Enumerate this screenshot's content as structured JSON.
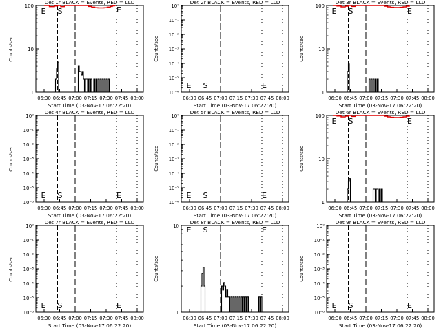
{
  "figure": {
    "background": "#ffffff",
    "event_color": "#000000",
    "lld_color": "#e00000"
  },
  "chart_data": [
    {
      "type": "line",
      "title": "Det 1r BLACK = Events, RED = LLD",
      "xlabel": "Start Time (03-Nov-17 06:22:20)",
      "ylabel": "Counts/sec",
      "x_ticks": [
        "06:30",
        "06:45",
        "07:00",
        "07:15",
        "07:30",
        "07:45",
        "08:00"
      ],
      "y_scale": "log",
      "y_ticks": [
        "1",
        "10",
        "100"
      ],
      "ylim": [
        1,
        100
      ],
      "markers": [
        {
          "label": "E",
          "time": "06:27"
        },
        {
          "label": "S",
          "time": "06:43"
        },
        {
          "label": "E",
          "time": "07:40"
        }
      ],
      "series": [
        {
          "name": "Events",
          "color": "#000000",
          "x": [
            "06:40",
            "06:41",
            "06:42",
            "06:43",
            "06:44",
            "06:45",
            "06:46",
            "06:47",
            "06:48",
            "06:49",
            "06:50",
            "06:51",
            "06:52",
            "06:53",
            "06:54",
            "06:55",
            "06:56",
            "06:57",
            "06:58",
            "06:59",
            "07:00",
            "07:01",
            "07:02",
            "07:03",
            "07:04",
            "07:05",
            "07:06",
            "07:07",
            "07:08",
            "07:09",
            "07:10",
            "07:11",
            "07:12",
            "07:13",
            "07:14",
            "07:15",
            "07:16",
            "07:17",
            "07:18",
            "07:19",
            "07:20",
            "07:21",
            "07:22",
            "07:23",
            "07:24",
            "07:25",
            "07:26",
            "07:27",
            "07:28",
            "07:29",
            "07:30",
            "07:31",
            "07:32",
            "07:33"
          ],
          "values": [
            1,
            2,
            3.5,
            5,
            0,
            0,
            0,
            0,
            0,
            0,
            0,
            0,
            0,
            0,
            0,
            0,
            0,
            0,
            0,
            0,
            0,
            0,
            0,
            4,
            3,
            3,
            2.5,
            3,
            2,
            1,
            2,
            2,
            1,
            2,
            1,
            2,
            1,
            1,
            2,
            1,
            2,
            1,
            2,
            1,
            2,
            1,
            2,
            1,
            2,
            1,
            2,
            1,
            2,
            1
          ]
        },
        {
          "name": "LLD",
          "color": "#e00000",
          "x": [
            "06:30",
            "06:35",
            "06:40",
            "06:43",
            "06:46",
            "06:50",
            "07:10",
            "07:13",
            "07:16",
            "07:19",
            "07:22",
            "07:25",
            "07:28",
            "07:31",
            "07:34",
            "07:36",
            "07:38",
            "07:40"
          ],
          "values": [
            100,
            94,
            97,
            100,
            94,
            100,
            100,
            95,
            92,
            89,
            88,
            88,
            89,
            92,
            95,
            98,
            100,
            100
          ]
        }
      ]
    },
    {
      "type": "line",
      "title": "Det 2r BLACK = Events, RED = LLD",
      "xlabel": "Start Time (03-Nov-17 06:22:20)",
      "ylabel": "Counts/sec",
      "x_ticks": [
        "06:30",
        "06:45",
        "07:00",
        "07:15",
        "07:30",
        "07:45",
        "08:00"
      ],
      "y_scale": "log",
      "y_ticks": [
        "10⁰",
        "10⁻¹",
        "10⁻²",
        "10⁻³",
        "10⁻⁴",
        "10⁻⁵",
        "10⁻⁶"
      ],
      "ylim": [
        1e-06,
        1
      ],
      "markers": [
        {
          "label": "E",
          "time": "06:27"
        },
        {
          "label": "S",
          "time": "06:43"
        },
        {
          "label": "E",
          "time": "07:40"
        }
      ],
      "series": []
    },
    {
      "type": "line",
      "title": "Det 3r BLACK = Events, RED = LLD",
      "xlabel": "Start Time (03-Nov-17 06:22:20)",
      "ylabel": "Counts/sec",
      "x_ticks": [
        "06:30",
        "06:45",
        "07:00",
        "07:15",
        "07:30",
        "07:45",
        "08:00"
      ],
      "y_scale": "log",
      "y_ticks": [
        "1",
        "10",
        "100"
      ],
      "ylim": [
        1,
        100
      ],
      "markers": [
        {
          "label": "E",
          "time": "06:27"
        },
        {
          "label": "S",
          "time": "06:43"
        },
        {
          "label": "E",
          "time": "07:40"
        }
      ],
      "series": [
        {
          "name": "Events",
          "color": "#000000",
          "x": [
            "06:41",
            "06:42",
            "06:43",
            "06:44",
            "06:45",
            "07:02",
            "07:03",
            "07:04",
            "07:05",
            "07:06",
            "07:07",
            "07:08",
            "07:09",
            "07:10",
            "07:11",
            "07:12"
          ],
          "values": [
            1,
            3,
            4.5,
            0,
            0,
            0,
            2,
            1,
            2,
            1,
            2,
            1,
            2,
            1,
            2,
            1
          ]
        },
        {
          "name": "LLD",
          "color": "#e00000",
          "x": [
            "06:28",
            "06:32",
            "06:36",
            "06:40",
            "06:43",
            "06:46",
            "06:50",
            "07:15",
            "07:18",
            "07:21",
            "07:24",
            "07:27",
            "07:30",
            "07:33",
            "07:36",
            "07:39",
            "07:42"
          ],
          "values": [
            100,
            97,
            93,
            96,
            100,
            95,
            100,
            100,
            96,
            93,
            91,
            90,
            90,
            91,
            93,
            96,
            100
          ]
        }
      ]
    },
    {
      "type": "line",
      "title": "Det 4r BLACK = Events, RED = LLD",
      "xlabel": "Start Time (03-Nov-17 06:22:20)",
      "ylabel": "Counts/sec",
      "x_ticks": [
        "06:30",
        "06:45",
        "07:00",
        "07:15",
        "07:30",
        "07:45",
        "08:00"
      ],
      "y_scale": "log",
      "y_ticks": [
        "10⁰",
        "10⁻¹",
        "10⁻²",
        "10⁻³",
        "10⁻⁴",
        "10⁻⁵",
        "10⁻⁶"
      ],
      "ylim": [
        1e-06,
        1
      ],
      "markers": [
        {
          "label": "E",
          "time": "06:27"
        },
        {
          "label": "S",
          "time": "06:43"
        },
        {
          "label": "E",
          "time": "07:40"
        }
      ],
      "series": []
    },
    {
      "type": "line",
      "title": "Det 5r BLACK = Events, RED = LLD",
      "xlabel": "Start Time (03-Nov-17 06:22:20)",
      "ylabel": "Counts/sec",
      "x_ticks": [
        "06:30",
        "06:45",
        "07:00",
        "07:15",
        "07:30",
        "07:45",
        "08:00"
      ],
      "y_scale": "log",
      "y_ticks": [
        "10⁰",
        "10⁻¹",
        "10⁻²",
        "10⁻³",
        "10⁻⁴",
        "10⁻⁵",
        "10⁻⁶"
      ],
      "ylim": [
        1e-06,
        1
      ],
      "markers": [
        {
          "label": "E",
          "time": "06:27"
        },
        {
          "label": "S",
          "time": "06:43"
        },
        {
          "label": "E",
          "time": "07:40"
        }
      ],
      "series": []
    },
    {
      "type": "line",
      "title": "Det 6r BLACK = Events, RED = LLD",
      "xlabel": "Start Time (03-Nov-17 06:22:20)",
      "ylabel": "Counts/sec",
      "x_ticks": [
        "06:30",
        "06:45",
        "07:00",
        "07:15",
        "07:30",
        "07:45",
        "08:00"
      ],
      "y_scale": "log",
      "y_ticks": [
        "1",
        "10",
        "100"
      ],
      "ylim": [
        1,
        100
      ],
      "markers": [
        {
          "label": "E",
          "time": "06:27"
        },
        {
          "label": "S",
          "time": "06:43"
        },
        {
          "label": "E",
          "time": "07:40"
        }
      ],
      "series": [
        {
          "name": "Events",
          "color": "#000000",
          "x": [
            "06:41",
            "06:42",
            "06:43",
            "06:44",
            "06:45",
            "07:05",
            "07:06",
            "07:07",
            "07:08",
            "07:09",
            "07:10",
            "07:11",
            "07:12",
            "07:13",
            "07:14",
            "07:15",
            "07:16"
          ],
          "values": [
            1,
            2,
            3,
            3.5,
            0,
            0,
            1,
            2,
            2,
            1,
            2,
            2,
            1,
            2,
            1,
            2,
            1
          ]
        },
        {
          "name": "LLD",
          "color": "#e00000",
          "x": [
            "06:28",
            "06:32",
            "06:36",
            "06:40",
            "06:43",
            "06:46",
            "06:50",
            "07:15",
            "07:18",
            "07:21",
            "07:24",
            "07:27",
            "07:30",
            "07:33",
            "07:36",
            "07:39",
            "07:42"
          ],
          "values": [
            100,
            97,
            93,
            96,
            100,
            95,
            100,
            100,
            96,
            93,
            91,
            90,
            90,
            91,
            93,
            96,
            100
          ]
        }
      ]
    },
    {
      "type": "line",
      "title": "Det 7r BLACK = Events, RED = LLD",
      "xlabel": "Start Time (03-Nov-17 06:22:20)",
      "ylabel": "Counts/sec",
      "x_ticks": [
        "06:30",
        "06:45",
        "07:00",
        "07:15",
        "07:30",
        "07:45",
        "08:00"
      ],
      "y_scale": "log",
      "y_ticks": [
        "10⁰",
        "10⁻¹",
        "10⁻²",
        "10⁻³",
        "10⁻⁴",
        "10⁻⁵",
        "10⁻⁶"
      ],
      "ylim": [
        1e-06,
        1
      ],
      "markers": [
        {
          "label": "E",
          "time": "06:27"
        },
        {
          "label": "S",
          "time": "06:43"
        },
        {
          "label": "E",
          "time": "07:40"
        }
      ],
      "series": []
    },
    {
      "type": "line",
      "title": "Det 8r BLACK = Events, RED = LLD",
      "xlabel": "Start Time (03-Nov-17 06:22:20)",
      "ylabel": "Counts/sec",
      "x_ticks": [
        "06:30",
        "06:45",
        "07:00",
        "07:15",
        "07:30",
        "07:45",
        "08:00"
      ],
      "y_scale": "log",
      "y_ticks": [
        "1",
        "10"
      ],
      "ylim": [
        1,
        10
      ],
      "markers": [
        {
          "label": "E",
          "time": "06:27"
        },
        {
          "label": "S",
          "time": "06:43"
        },
        {
          "label": "E",
          "time": "07:40"
        }
      ],
      "series": [
        {
          "name": "Events",
          "color": "#000000",
          "x": [
            "06:40",
            "06:41",
            "06:42",
            "06:43",
            "06:44",
            "06:45",
            "07:00",
            "07:01",
            "07:02",
            "07:03",
            "07:04",
            "07:05",
            "07:06",
            "07:07",
            "07:08",
            "07:09",
            "07:10",
            "07:11",
            "07:12",
            "07:13",
            "07:14",
            "07:15",
            "07:16",
            "07:17",
            "07:18",
            "07:19",
            "07:20",
            "07:21",
            "07:22",
            "07:23",
            "07:24",
            "07:25",
            "07:26",
            "07:27",
            "07:28",
            "07:35",
            "07:36",
            "07:37",
            "07:38",
            "07:39",
            "07:40"
          ],
          "values": [
            1,
            2,
            2.8,
            3.3,
            2,
            0,
            0,
            2,
            1.8,
            2.2,
            2,
            1.5,
            1.8,
            1.5,
            1.5,
            1,
            1.5,
            1,
            1.5,
            1,
            1.5,
            1,
            1.5,
            1,
            1.5,
            1,
            1.5,
            1,
            1.5,
            1,
            1.5,
            1,
            1.5,
            1,
            0,
            0,
            1,
            1.5,
            1,
            1.5,
            1
          ]
        }
      ]
    },
    {
      "type": "line",
      "title": "Det 9r BLACK = Events, RED = LLD",
      "xlabel": "Start Time (03-Nov-17 06:22:20)",
      "ylabel": "Counts/sec",
      "x_ticks": [
        "06:30",
        "06:45",
        "07:00",
        "07:15",
        "07:30",
        "07:45",
        "08:00"
      ],
      "y_scale": "log",
      "y_ticks": [
        "10⁰",
        "10⁻¹",
        "10⁻²",
        "10⁻³",
        "10⁻⁴",
        "10⁻⁵",
        "10⁻⁶"
      ],
      "ylim": [
        1e-06,
        1
      ],
      "markers": [
        {
          "label": "E",
          "time": "06:27"
        },
        {
          "label": "S",
          "time": "06:43"
        },
        {
          "label": "E",
          "time": "07:40"
        }
      ],
      "series": []
    }
  ]
}
